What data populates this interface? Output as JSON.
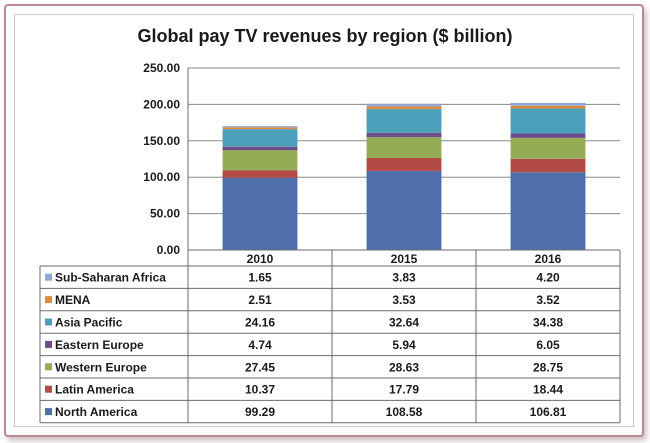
{
  "chart_data": {
    "type": "bar",
    "stacked": true,
    "title": "Global pay TV revenues by region ($ billion)",
    "xlabel": "",
    "ylabel": "",
    "categories": [
      "2010",
      "2015",
      "2016"
    ],
    "ylim": [
      0,
      250
    ],
    "yticks": [
      "0.00",
      "50.00",
      "100.00",
      "150.00",
      "200.00",
      "250.00"
    ],
    "grid": true,
    "legend": "data-table-left",
    "series": [
      {
        "name": "North America",
        "color": "#4f6fab",
        "values": [
          99.29,
          108.58,
          106.81
        ],
        "labels": [
          "99.29",
          "108.58",
          "106.81"
        ]
      },
      {
        "name": "Latin America",
        "color": "#b24a47",
        "values": [
          10.37,
          17.79,
          18.44
        ],
        "labels": [
          "10.37",
          "17.79",
          "18.44"
        ]
      },
      {
        "name": "Western Europe",
        "color": "#93ac55",
        "values": [
          27.45,
          28.63,
          28.75
        ],
        "labels": [
          "27.45",
          "28.63",
          "28.75"
        ]
      },
      {
        "name": "Eastern Europe",
        "color": "#6f4d8a",
        "values": [
          4.74,
          5.94,
          6.05
        ],
        "labels": [
          "4.74",
          "5.94",
          "6.05"
        ]
      },
      {
        "name": "Asia Pacific",
        "color": "#4da0b9",
        "values": [
          24.16,
          32.64,
          34.38
        ],
        "labels": [
          "24.16",
          "32.64",
          "34.38"
        ]
      },
      {
        "name": "MENA",
        "color": "#e48b3b",
        "values": [
          2.51,
          3.53,
          3.52
        ],
        "labels": [
          "2.51",
          "3.53",
          "3.52"
        ]
      },
      {
        "name": "Sub-Saharan Africa",
        "color": "#93a9d4",
        "values": [
          1.65,
          3.83,
          4.2
        ],
        "labels": [
          "1.65",
          "3.83",
          "4.20"
        ]
      }
    ]
  }
}
